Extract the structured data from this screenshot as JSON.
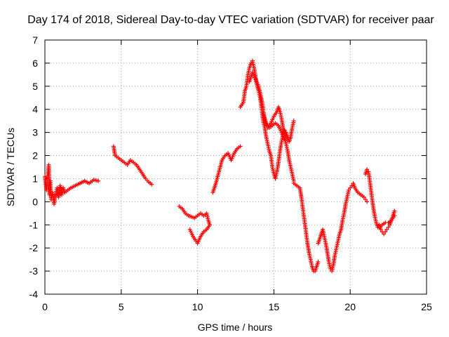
{
  "chart_data": {
    "type": "scatter",
    "title": "Day 174 of 2018, Sidereal Day-to-day VTEC variation (SDTVAR) for receiver paar",
    "xlabel": "GPS time / hours",
    "ylabel": "SDTVAR / TECUs",
    "xlim": [
      0,
      25
    ],
    "ylim": [
      -4,
      7
    ],
    "xticks": [
      "0",
      "5",
      "10",
      "15",
      "20",
      "25"
    ],
    "yticks": [
      "-4",
      "-3",
      "-2",
      "-1",
      "0",
      "1",
      "2",
      "3",
      "4",
      "5",
      "6",
      "7"
    ],
    "grid": true,
    "marker": "+",
    "color": "#ff0000",
    "series": [
      {
        "name": "SDTVAR",
        "segments": [
          [
            [
              0.0,
              1.1
            ],
            [
              0.1,
              0.5
            ],
            [
              0.2,
              1.2
            ],
            [
              0.25,
              1.6
            ],
            [
              0.3,
              0.3
            ],
            [
              0.35,
              0.9
            ],
            [
              0.4,
              0.1
            ],
            [
              0.5,
              0.4
            ],
            [
              0.6,
              -0.1
            ],
            [
              0.7,
              0.3
            ],
            [
              0.8,
              0.6
            ],
            [
              0.9,
              0.2
            ],
            [
              1.0,
              0.7
            ],
            [
              1.1,
              0.3
            ],
            [
              1.2,
              0.6
            ],
            [
              1.3,
              0.4
            ],
            [
              1.5,
              0.5
            ],
            [
              1.7,
              0.6
            ],
            [
              2.0,
              0.7
            ],
            [
              2.3,
              0.8
            ],
            [
              2.6,
              0.9
            ],
            [
              2.9,
              0.8
            ],
            [
              3.2,
              0.95
            ],
            [
              3.5,
              0.9
            ]
          ],
          [
            [
              4.5,
              2.4
            ],
            [
              4.6,
              2.0
            ],
            [
              4.8,
              1.9
            ],
            [
              5.0,
              1.8
            ],
            [
              5.2,
              1.7
            ],
            [
              5.4,
              1.6
            ],
            [
              5.6,
              1.8
            ],
            [
              5.8,
              1.7
            ],
            [
              6.0,
              1.6
            ],
            [
              6.2,
              1.4
            ],
            [
              6.4,
              1.2
            ],
            [
              6.6,
              1.0
            ],
            [
              6.8,
              0.85
            ],
            [
              7.0,
              0.75
            ]
          ],
          [
            [
              8.8,
              -0.2
            ],
            [
              9.0,
              -0.3
            ],
            [
              9.2,
              -0.5
            ],
            [
              9.4,
              -0.6
            ],
            [
              9.6,
              -0.65
            ],
            [
              9.8,
              -0.7
            ],
            [
              10.0,
              -0.6
            ],
            [
              10.2,
              -0.5
            ],
            [
              10.4,
              -0.6
            ],
            [
              10.6,
              -0.5
            ],
            [
              10.7,
              -0.8
            ],
            [
              10.8,
              -1.0
            ]
          ],
          [
            [
              9.5,
              -1.2
            ],
            [
              9.7,
              -1.5
            ],
            [
              9.9,
              -1.7
            ],
            [
              10.0,
              -1.8
            ],
            [
              10.2,
              -1.5
            ],
            [
              10.4,
              -1.3
            ],
            [
              10.6,
              -1.2
            ],
            [
              10.8,
              -1.0
            ]
          ],
          [
            [
              11.0,
              0.4
            ],
            [
              11.2,
              0.8
            ],
            [
              11.4,
              1.3
            ],
            [
              11.6,
              1.8
            ],
            [
              11.8,
              2.0
            ],
            [
              12.0,
              2.1
            ],
            [
              12.2,
              1.8
            ],
            [
              12.4,
              2.1
            ],
            [
              12.6,
              2.3
            ],
            [
              12.8,
              2.4
            ]
          ],
          [
            [
              12.8,
              4.1
            ],
            [
              13.0,
              4.3
            ],
            [
              13.1,
              4.8
            ],
            [
              13.2,
              5.0
            ],
            [
              13.3,
              5.5
            ],
            [
              13.4,
              5.8
            ],
            [
              13.5,
              6.0
            ],
            [
              13.6,
              6.1
            ],
            [
              13.7,
              5.8
            ],
            [
              13.8,
              5.4
            ],
            [
              13.9,
              5.0
            ],
            [
              14.0,
              4.8
            ],
            [
              14.1,
              4.5
            ],
            [
              14.2,
              4.0
            ],
            [
              14.3,
              3.5
            ],
            [
              14.4,
              3.2
            ],
            [
              14.5,
              2.8
            ],
            [
              14.6,
              2.5
            ],
            [
              14.7,
              2.2
            ],
            [
              14.8,
              2.0
            ],
            [
              14.9,
              1.5
            ],
            [
              15.0,
              1.2
            ],
            [
              15.1,
              1.0
            ],
            [
              15.2,
              1.3
            ],
            [
              15.3,
              1.7
            ],
            [
              15.4,
              2.2
            ],
            [
              15.5,
              2.6
            ],
            [
              15.6,
              2.9
            ],
            [
              15.7,
              3.1
            ],
            [
              15.8,
              3.0
            ],
            [
              15.9,
              2.8
            ],
            [
              16.0,
              2.6
            ],
            [
              16.1,
              2.8
            ],
            [
              16.2,
              3.2
            ],
            [
              16.3,
              3.5
            ]
          ],
          [
            [
              13.4,
              5.2
            ],
            [
              13.6,
              5.6
            ],
            [
              13.8,
              5.3
            ],
            [
              14.0,
              5.0
            ],
            [
              14.2,
              4.4
            ],
            [
              14.3,
              4.0
            ],
            [
              14.4,
              3.5
            ],
            [
              14.5,
              3.3
            ],
            [
              14.6,
              3.2
            ],
            [
              14.8,
              3.4
            ],
            [
              15.0,
              3.7
            ],
            [
              15.2,
              3.9
            ],
            [
              15.3,
              4.1
            ],
            [
              15.4,
              3.9
            ],
            [
              15.5,
              3.6
            ],
            [
              15.6,
              3.2
            ],
            [
              15.7,
              2.9
            ],
            [
              15.8,
              2.5
            ],
            [
              15.9,
              2.2
            ],
            [
              16.0,
              1.8
            ],
            [
              16.1,
              1.5
            ],
            [
              16.2,
              1.2
            ],
            [
              16.3,
              0.9
            ]
          ],
          [
            [
              14.3,
              3.8
            ],
            [
              14.5,
              3.4
            ],
            [
              14.7,
              3.2
            ],
            [
              14.9,
              3.3
            ],
            [
              15.1,
              3.4
            ],
            [
              15.3,
              3.3
            ],
            [
              15.5,
              3.0
            ],
            [
              15.7,
              2.7
            ]
          ],
          [
            [
              16.3,
              0.8
            ],
            [
              16.5,
              0.7
            ],
            [
              16.7,
              0.6
            ],
            [
              16.8,
              0.2
            ],
            [
              16.9,
              -0.3
            ],
            [
              17.0,
              -0.8
            ],
            [
              17.1,
              -1.3
            ],
            [
              17.2,
              -1.8
            ],
            [
              17.3,
              -2.2
            ],
            [
              17.4,
              -2.5
            ],
            [
              17.5,
              -2.8
            ],
            [
              17.6,
              -3.0
            ],
            [
              17.7,
              -3.0
            ],
            [
              17.9,
              -2.6
            ]
          ],
          [
            [
              17.9,
              -1.8
            ],
            [
              18.0,
              -1.6
            ],
            [
              18.1,
              -1.4
            ],
            [
              18.2,
              -1.2
            ],
            [
              18.3,
              -1.5
            ],
            [
              18.4,
              -1.8
            ],
            [
              18.5,
              -2.2
            ],
            [
              18.6,
              -2.6
            ],
            [
              18.7,
              -2.9
            ],
            [
              18.8,
              -3.0
            ],
            [
              18.9,
              -2.7
            ],
            [
              19.0,
              -2.3
            ],
            [
              19.1,
              -2.0
            ],
            [
              19.2,
              -1.7
            ],
            [
              19.3,
              -1.4
            ],
            [
              19.4,
              -1.2
            ],
            [
              19.5,
              -0.8
            ],
            [
              19.6,
              -0.5
            ],
            [
              19.7,
              -0.1
            ],
            [
              19.8,
              0.2
            ],
            [
              19.9,
              0.5
            ],
            [
              20.0,
              0.6
            ],
            [
              20.1,
              0.7
            ],
            [
              20.2,
              0.8
            ],
            [
              20.3,
              0.6
            ],
            [
              20.5,
              0.4
            ],
            [
              20.7,
              0.3
            ],
            [
              20.9,
              0.2
            ],
            [
              21.0,
              0.1
            ],
            [
              21.1,
              0.0
            ]
          ],
          [
            [
              21.0,
              1.2
            ],
            [
              21.1,
              1.4
            ],
            [
              21.2,
              1.3
            ],
            [
              21.3,
              0.8
            ],
            [
              21.4,
              0.3
            ],
            [
              21.5,
              -0.2
            ],
            [
              21.6,
              -0.6
            ],
            [
              21.7,
              -0.9
            ],
            [
              21.8,
              -1.1
            ],
            [
              21.9,
              -1.0
            ],
            [
              22.0,
              -1.2
            ],
            [
              22.1,
              -1.3
            ],
            [
              22.2,
              -1.4
            ],
            [
              22.3,
              -1.3
            ],
            [
              22.4,
              -1.2
            ],
            [
              22.5,
              -1.1
            ],
            [
              22.6,
              -1.0
            ],
            [
              22.7,
              -0.8
            ],
            [
              22.8,
              -0.6
            ],
            [
              22.9,
              -0.4
            ]
          ],
          [
            [
              21.9,
              -1.1
            ],
            [
              22.1,
              -1.0
            ],
            [
              22.3,
              -0.9
            ],
            [
              22.5,
              -0.9
            ],
            [
              22.7,
              -0.8
            ],
            [
              22.9,
              -0.6
            ]
          ]
        ]
      }
    ]
  }
}
